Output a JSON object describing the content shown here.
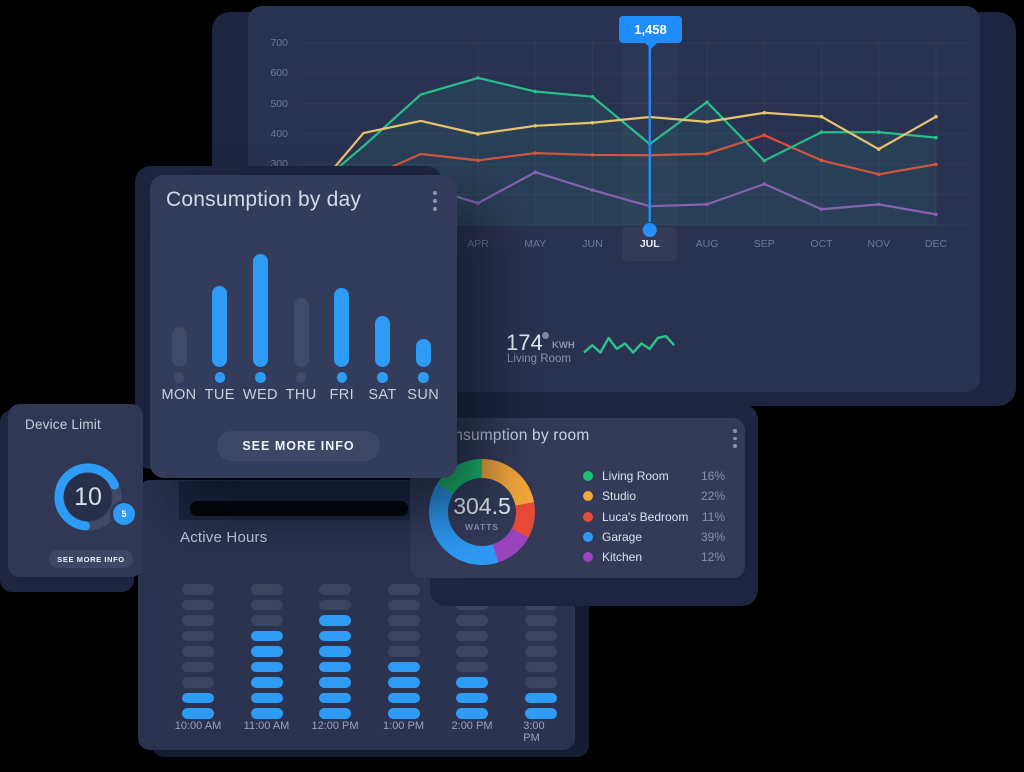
{
  "colors": {
    "accent_blue": "#2e9bf5",
    "tooltip_blue": "#1e8df9",
    "line_green": "#27bf8a",
    "line_yellow": "#e7c46a",
    "line_red": "#e44b38",
    "line_purple": "#9458b8",
    "spark_green": "#2bc48d",
    "bar_gray": "#414a68",
    "pill_gray": "#3c455f",
    "donut_green": "#1cc572",
    "donut_orange": "#f4a73b",
    "donut_red": "#e94b38",
    "donut_blue": "#2e9bf5",
    "donut_purple": "#9c44c0"
  },
  "chart_data": [
    {
      "id": "consumption_by_month",
      "type": "line",
      "months": [
        "APR",
        "MAY",
        "JUN",
        "JUL",
        "AUG",
        "SEP",
        "OCT",
        "NOV",
        "DEC"
      ],
      "selected_month": "JUL",
      "tooltip": {
        "month": "JUL",
        "value": "1,458"
      },
      "y_ticks": [
        700,
        600,
        500,
        400,
        300
      ],
      "grid_values": [
        700,
        600,
        500,
        400,
        300,
        200,
        100
      ],
      "ylim": [
        100,
        700
      ],
      "series": [
        {
          "name": "purple",
          "color": "#9458b8",
          "lead": [
            null,
            120,
            230
          ],
          "values": [
            172,
            274,
            215,
            162,
            168,
            235,
            152,
            168,
            135
          ]
        },
        {
          "name": "red",
          "color": "#e44b38",
          "lead": [
            150,
            250,
            334
          ],
          "values": [
            313,
            337,
            331,
            330,
            335,
            396,
            313,
            267,
            300
          ]
        },
        {
          "name": "green",
          "color": "#27bf8a",
          "fill": "rgba(42,190,140,0.10)",
          "lead": [
            200,
            360,
            530
          ],
          "values": [
            585,
            540,
            523,
            367,
            505,
            312,
            406,
            406,
            388
          ]
        },
        {
          "name": "yellow",
          "color": "#e7c46a",
          "lead": [
            180,
            403,
            443
          ],
          "values": [
            400,
            427,
            437,
            456,
            440,
            470,
            457,
            350,
            457
          ]
        }
      ]
    },
    {
      "id": "consumption_by_day",
      "type": "bar",
      "title": "Consumption by day",
      "categories": [
        "MON",
        "TUE",
        "WED",
        "THU",
        "FRI",
        "SAT",
        "SUN"
      ],
      "values": [
        40,
        81,
        113,
        69,
        79,
        51,
        28
      ],
      "highlighted": [
        false,
        true,
        true,
        false,
        true,
        true,
        true
      ],
      "button_label": "SEE MORE INFO"
    },
    {
      "id": "consumption_by_room",
      "type": "pie",
      "title": "Consumption by room",
      "center_value": "304.5",
      "center_unit": "WATTS",
      "legend": [
        {
          "name": "Living Room",
          "pct": "16%",
          "value": 16,
          "color": "#1cc572"
        },
        {
          "name": "Studio",
          "pct": "22%",
          "value": 22,
          "color": "#f4a73b"
        },
        {
          "name": "Luca's Bedroom",
          "pct": "11%",
          "value": 11,
          "color": "#e94b38"
        },
        {
          "name": "Garage",
          "pct": "39%",
          "value": 39,
          "color": "#2e9bf5"
        },
        {
          "name": "Kitchen",
          "pct": "12%",
          "value": 12,
          "color": "#9c44c0"
        }
      ],
      "draw_order": [
        1,
        2,
        4,
        3,
        0
      ]
    },
    {
      "id": "active_hours",
      "type": "heatmap",
      "title": "Active Hours",
      "times": [
        "10:00 AM",
        "11:00 AM",
        "12:00 PM",
        "1:00 PM",
        "2:00 PM",
        "3:00 PM"
      ],
      "rows": 9,
      "on_counts": [
        2,
        6,
        7,
        4,
        3,
        2
      ]
    },
    {
      "id": "living_room_kwh",
      "type": "sparkline",
      "value": "174",
      "unit": "KWH",
      "label": "Living Room",
      "points": [
        3,
        7,
        3,
        11,
        5,
        8,
        3,
        8,
        5,
        11,
        12,
        7
      ]
    }
  ],
  "device_limit": {
    "title": "Device Limit",
    "value": "10",
    "badge": "5",
    "button_label": "SEE MORE INFO",
    "arc_degrees": 240
  }
}
